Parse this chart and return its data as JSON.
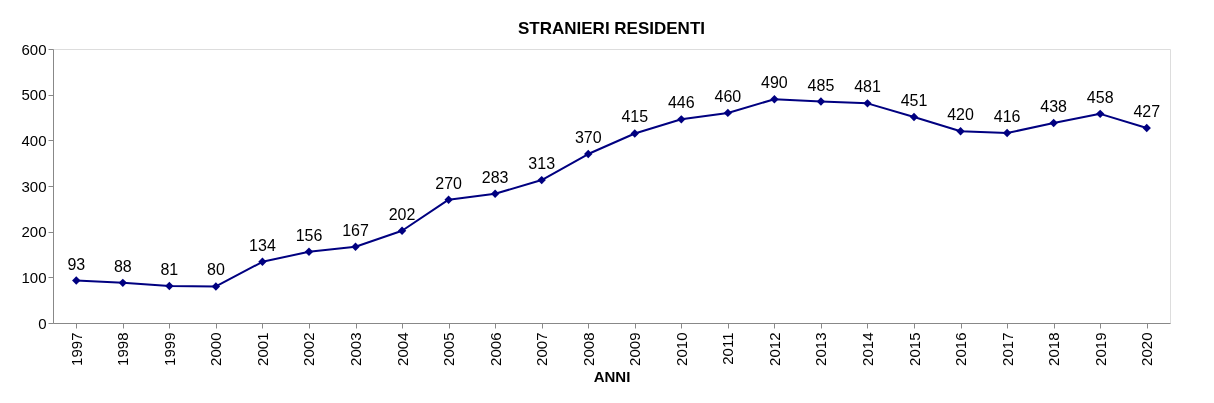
{
  "chart_data": {
    "type": "line",
    "title": "STRANIERI RESIDENTI",
    "xlabel": "ANNI",
    "categories": [
      "1997",
      "1998",
      "1999",
      "2000",
      "2001",
      "2002",
      "2003",
      "2004",
      "2005",
      "2006",
      "2007",
      "2008",
      "2009",
      "2010",
      "2011",
      "2012",
      "2013",
      "2014",
      "2015",
      "2016",
      "2017",
      "2018",
      "2019",
      "2020"
    ],
    "series": [
      {
        "color": "#000080",
        "values": [
          93,
          88,
          81,
          80,
          134,
          156,
          167,
          202,
          270,
          283,
          313,
          370,
          415,
          446,
          460,
          490,
          485,
          481,
          451,
          420,
          416,
          438,
          458,
          427
        ]
      }
    ],
    "ylim": [
      0,
      600
    ],
    "yticks": [
      0,
      100,
      200,
      300,
      400,
      500,
      600
    ],
    "grid": false,
    "legend": false,
    "marker": "diamond",
    "line_style": "solid",
    "data_labels": true
  }
}
